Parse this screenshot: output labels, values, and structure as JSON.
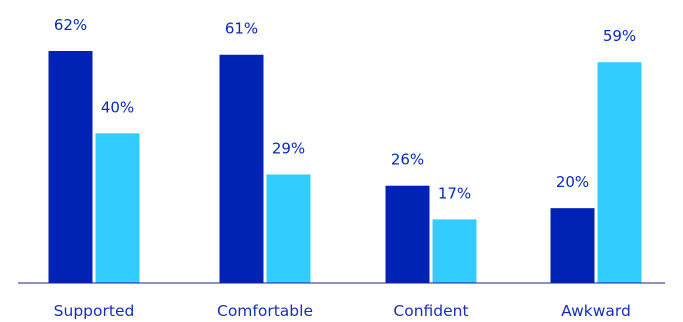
{
  "chart_data": {
    "type": "bar",
    "categories": [
      "Supported",
      "Comfortable",
      "Confident",
      "Awkward"
    ],
    "series": [
      {
        "values": [
          62,
          61,
          26,
          20
        ],
        "labels": [
          "62%",
          "61%",
          "26%",
          "20%"
        ]
      },
      {
        "values": [
          40,
          29,
          17,
          59
        ],
        "labels": [
          "40%",
          "29%",
          "17%",
          "59%"
        ]
      }
    ],
    "ylim": [
      0,
      62
    ],
    "grid": false,
    "colors": {
      "series_1": "#0022b5",
      "series_2": "#33ccff",
      "text": "#0a2ab5",
      "axis": "#1a237e"
    }
  }
}
